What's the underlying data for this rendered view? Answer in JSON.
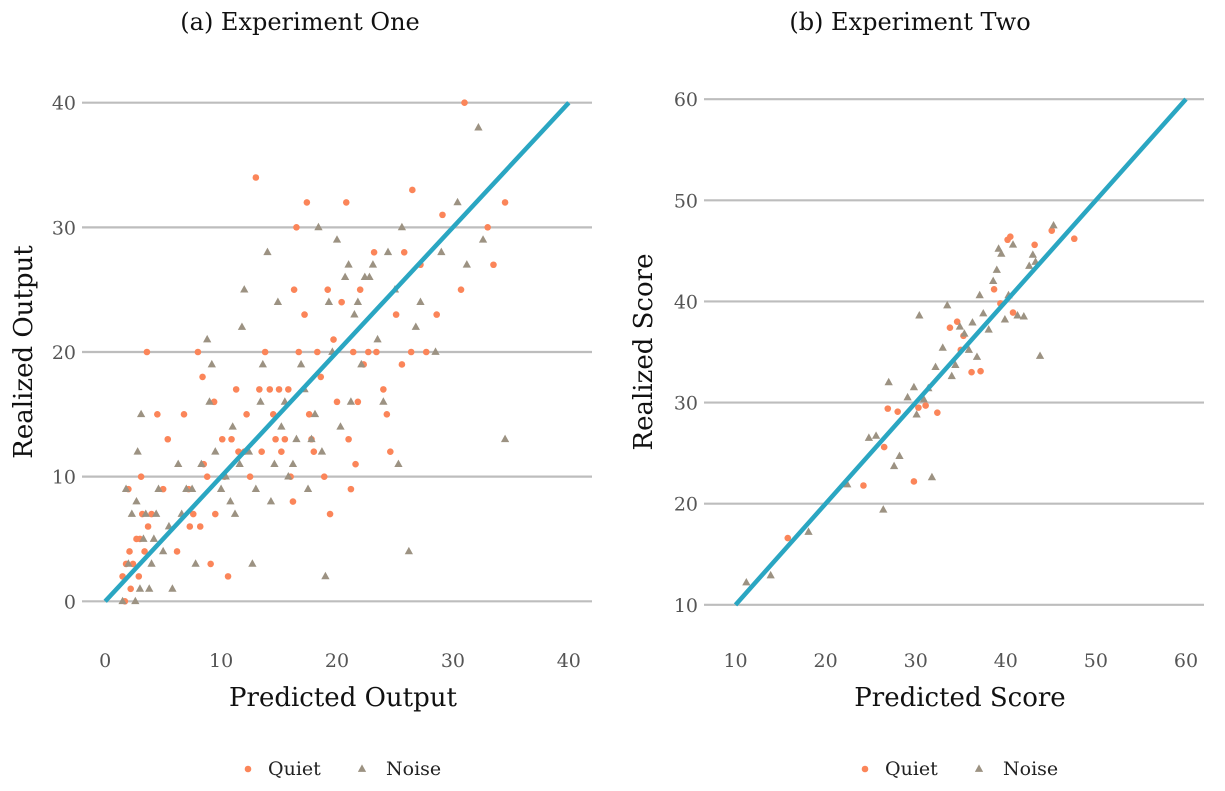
{
  "colors": {
    "quiet": "#fb8559",
    "noise": "#9c9282",
    "reference_line": "#2aa6c2",
    "grid": "#bdbdbd"
  },
  "chart_data": [
    {
      "type": "scatter",
      "title": "(a) Experiment One",
      "xlabel": "Predicted Output",
      "ylabel": "Realized Output",
      "xlim": [
        -2,
        42
      ],
      "ylim": [
        -1.5,
        41.5
      ],
      "xticks": [
        0,
        10,
        20,
        30,
        40
      ],
      "yticks": [
        0,
        10,
        20,
        30,
        40
      ],
      "grid": "horizontal",
      "reference_line": [
        [
          0,
          0
        ],
        [
          40,
          40
        ]
      ],
      "legend": {
        "position": "bottom",
        "entries": [
          "Quiet",
          "Noise"
        ]
      },
      "series": [
        {
          "name": "Quiet",
          "marker": "circle",
          "points": [
            [
              1.5,
              2
            ],
            [
              1.8,
              3
            ],
            [
              2.1,
              4
            ],
            [
              1.7,
              0
            ],
            [
              2.2,
              1
            ],
            [
              2.4,
              3
            ],
            [
              2.7,
              5
            ],
            [
              2.9,
              2
            ],
            [
              3.0,
              5
            ],
            [
              3.2,
              7
            ],
            [
              3.4,
              4
            ],
            [
              2.0,
              9
            ],
            [
              3.1,
              10
            ],
            [
              3.6,
              20
            ],
            [
              3.7,
              6
            ],
            [
              4.0,
              7
            ],
            [
              4.5,
              15
            ],
            [
              5.0,
              9
            ],
            [
              5.4,
              13
            ],
            [
              6.2,
              4
            ],
            [
              6.8,
              15
            ],
            [
              7.2,
              9
            ],
            [
              7.3,
              6
            ],
            [
              7.6,
              7
            ],
            [
              8.0,
              20
            ],
            [
              8.2,
              6
            ],
            [
              8.4,
              18
            ],
            [
              8.5,
              11
            ],
            [
              8.8,
              10
            ],
            [
              9.1,
              3
            ],
            [
              9.4,
              16
            ],
            [
              9.5,
              7
            ],
            [
              10.1,
              13
            ],
            [
              10.3,
              10
            ],
            [
              10.6,
              2
            ],
            [
              10.9,
              13
            ],
            [
              11.3,
              17
            ],
            [
              11.5,
              12
            ],
            [
              12.0,
              12
            ],
            [
              12.2,
              15
            ],
            [
              12.5,
              10
            ],
            [
              13.0,
              34
            ],
            [
              13.3,
              17
            ],
            [
              13.5,
              12
            ],
            [
              13.8,
              20
            ],
            [
              14.2,
              17
            ],
            [
              14.5,
              15
            ],
            [
              14.7,
              13
            ],
            [
              15.0,
              17
            ],
            [
              15.2,
              12
            ],
            [
              15.5,
              13
            ],
            [
              15.8,
              17
            ],
            [
              16.0,
              10
            ],
            [
              16.2,
              8
            ],
            [
              16.3,
              25
            ],
            [
              16.5,
              30
            ],
            [
              16.7,
              20
            ],
            [
              17.2,
              23
            ],
            [
              17.4,
              32
            ],
            [
              17.6,
              15
            ],
            [
              17.8,
              13
            ],
            [
              18.0,
              12
            ],
            [
              18.3,
              20
            ],
            [
              18.6,
              18
            ],
            [
              18.9,
              10
            ],
            [
              19.2,
              25
            ],
            [
              19.4,
              7
            ],
            [
              19.7,
              21
            ],
            [
              20.0,
              16
            ],
            [
              20.4,
              24
            ],
            [
              20.8,
              32
            ],
            [
              21.0,
              13
            ],
            [
              21.2,
              9
            ],
            [
              21.4,
              20
            ],
            [
              21.6,
              11
            ],
            [
              21.8,
              16
            ],
            [
              22.0,
              25
            ],
            [
              22.3,
              19
            ],
            [
              22.7,
              20
            ],
            [
              23.2,
              28
            ],
            [
              23.4,
              20
            ],
            [
              24.0,
              17
            ],
            [
              24.3,
              15
            ],
            [
              24.6,
              12
            ],
            [
              25.1,
              23
            ],
            [
              25.6,
              19
            ],
            [
              25.8,
              28
            ],
            [
              26.4,
              20
            ],
            [
              26.5,
              33
            ],
            [
              27.2,
              27
            ],
            [
              27.7,
              20
            ],
            [
              28.6,
              23
            ],
            [
              29.1,
              31
            ],
            [
              30.7,
              25
            ],
            [
              31.0,
              40
            ],
            [
              33.0,
              30
            ],
            [
              33.5,
              27
            ],
            [
              34.5,
              32
            ]
          ]
        },
        {
          "name": "Noise",
          "marker": "triangle",
          "points": [
            [
              1.5,
              0
            ],
            [
              1.8,
              9
            ],
            [
              2.0,
              3
            ],
            [
              2.3,
              7
            ],
            [
              2.6,
              0
            ],
            [
              2.7,
              8
            ],
            [
              2.8,
              12
            ],
            [
              3.0,
              1
            ],
            [
              3.1,
              15
            ],
            [
              3.3,
              5
            ],
            [
              3.5,
              7
            ],
            [
              3.8,
              1
            ],
            [
              4.0,
              3
            ],
            [
              4.2,
              5
            ],
            [
              4.4,
              7
            ],
            [
              4.6,
              9
            ],
            [
              5.0,
              4
            ],
            [
              5.5,
              6
            ],
            [
              5.8,
              1
            ],
            [
              6.3,
              11
            ],
            [
              6.6,
              7
            ],
            [
              7.0,
              9
            ],
            [
              7.5,
              9
            ],
            [
              7.8,
              3
            ],
            [
              8.3,
              11
            ],
            [
              8.8,
              21
            ],
            [
              9.0,
              16
            ],
            [
              9.2,
              19
            ],
            [
              9.5,
              12
            ],
            [
              10.0,
              9
            ],
            [
              10.4,
              10
            ],
            [
              10.8,
              8
            ],
            [
              11.0,
              14
            ],
            [
              11.2,
              7
            ],
            [
              11.6,
              11
            ],
            [
              11.8,
              22
            ],
            [
              12.0,
              25
            ],
            [
              12.4,
              12
            ],
            [
              12.7,
              3
            ],
            [
              13.0,
              9
            ],
            [
              13.4,
              16
            ],
            [
              13.6,
              19
            ],
            [
              14.0,
              28
            ],
            [
              14.3,
              8
            ],
            [
              14.6,
              11
            ],
            [
              14.9,
              24
            ],
            [
              15.2,
              14
            ],
            [
              15.5,
              16
            ],
            [
              15.8,
              10
            ],
            [
              16.2,
              11
            ],
            [
              16.5,
              13
            ],
            [
              16.9,
              19
            ],
            [
              17.2,
              17
            ],
            [
              17.5,
              9
            ],
            [
              17.8,
              13
            ],
            [
              18.1,
              15
            ],
            [
              18.4,
              30
            ],
            [
              18.7,
              12
            ],
            [
              19.0,
              2
            ],
            [
              19.3,
              24
            ],
            [
              19.6,
              20
            ],
            [
              20.0,
              29
            ],
            [
              20.3,
              14
            ],
            [
              20.7,
              26
            ],
            [
              21.0,
              27
            ],
            [
              21.2,
              16
            ],
            [
              21.5,
              23
            ],
            [
              21.8,
              24
            ],
            [
              22.1,
              19
            ],
            [
              22.4,
              26
            ],
            [
              22.8,
              26
            ],
            [
              23.1,
              27
            ],
            [
              23.5,
              21
            ],
            [
              24.0,
              16
            ],
            [
              24.4,
              28
            ],
            [
              25.0,
              25
            ],
            [
              25.3,
              11
            ],
            [
              25.6,
              30
            ],
            [
              26.2,
              4
            ],
            [
              26.8,
              22
            ],
            [
              27.2,
              24
            ],
            [
              28.5,
              20
            ],
            [
              29.0,
              28
            ],
            [
              30.4,
              32
            ],
            [
              31.2,
              27
            ],
            [
              32.2,
              38
            ],
            [
              32.6,
              29
            ],
            [
              34.5,
              13
            ]
          ]
        }
      ]
    },
    {
      "type": "scatter",
      "title": "(b) Experiment Two",
      "xlabel": "Predicted Score",
      "ylabel": "Realized Score",
      "xlim": [
        6.5,
        62
      ],
      "ylim": [
        8.5,
        61.5
      ],
      "xticks": [
        10,
        20,
        30,
        40,
        50,
        60
      ],
      "yticks": [
        10,
        20,
        30,
        40,
        50,
        60
      ],
      "grid": "horizontal",
      "reference_line": [
        [
          10,
          10
        ],
        [
          60,
          60
        ]
      ],
      "legend": {
        "position": "bottom",
        "entries": [
          "Quiet",
          "Noise"
        ]
      },
      "series": [
        {
          "name": "Quiet",
          "marker": "circle",
          "points": [
            [
              15.8,
              16.6
            ],
            [
              24.2,
              21.8
            ],
            [
              26.5,
              25.6
            ],
            [
              26.9,
              29.4
            ],
            [
              28.0,
              29.1
            ],
            [
              29.8,
              22.2
            ],
            [
              30.3,
              29.5
            ],
            [
              31.1,
              29.7
            ],
            [
              32.4,
              29.0
            ],
            [
              33.8,
              37.4
            ],
            [
              34.6,
              38.0
            ],
            [
              35.0,
              35.2
            ],
            [
              35.3,
              36.6
            ],
            [
              36.2,
              33.0
            ],
            [
              37.2,
              33.1
            ],
            [
              38.7,
              41.2
            ],
            [
              39.4,
              39.8
            ],
            [
              40.2,
              46.1
            ],
            [
              40.5,
              46.4
            ],
            [
              40.8,
              38.9
            ],
            [
              43.2,
              45.6
            ],
            [
              45.1,
              47.0
            ],
            [
              47.6,
              46.2
            ]
          ]
        },
        {
          "name": "Noise",
          "marker": "triangle",
          "points": [
            [
              11.2,
              12.2
            ],
            [
              13.9,
              12.9
            ],
            [
              18.1,
              17.2
            ],
            [
              22.4,
              21.9
            ],
            [
              24.8,
              26.5
            ],
            [
              25.6,
              26.7
            ],
            [
              26.4,
              19.4
            ],
            [
              27.0,
              32.0
            ],
            [
              27.6,
              23.7
            ],
            [
              28.2,
              24.7
            ],
            [
              29.1,
              30.5
            ],
            [
              29.8,
              31.5
            ],
            [
              30.1,
              28.8
            ],
            [
              30.4,
              38.6
            ],
            [
              30.9,
              30.3
            ],
            [
              31.4,
              31.4
            ],
            [
              31.8,
              22.6
            ],
            [
              32.2,
              33.5
            ],
            [
              33.0,
              35.4
            ],
            [
              33.5,
              39.6
            ],
            [
              34.0,
              32.6
            ],
            [
              34.4,
              33.7
            ],
            [
              34.9,
              37.5
            ],
            [
              35.4,
              36.8
            ],
            [
              35.9,
              35.2
            ],
            [
              36.3,
              37.9
            ],
            [
              36.8,
              34.5
            ],
            [
              37.1,
              40.6
            ],
            [
              37.5,
              38.8
            ],
            [
              38.1,
              37.2
            ],
            [
              38.6,
              42.0
            ],
            [
              39.0,
              43.1
            ],
            [
              39.2,
              45.2
            ],
            [
              39.5,
              44.7
            ],
            [
              39.9,
              38.2
            ],
            [
              40.3,
              40.6
            ],
            [
              40.8,
              45.6
            ],
            [
              41.3,
              38.6
            ],
            [
              42.0,
              38.5
            ],
            [
              42.6,
              43.5
            ],
            [
              43.0,
              44.6
            ],
            [
              43.3,
              43.9
            ],
            [
              43.8,
              34.6
            ],
            [
              45.3,
              47.5
            ]
          ]
        }
      ]
    }
  ]
}
